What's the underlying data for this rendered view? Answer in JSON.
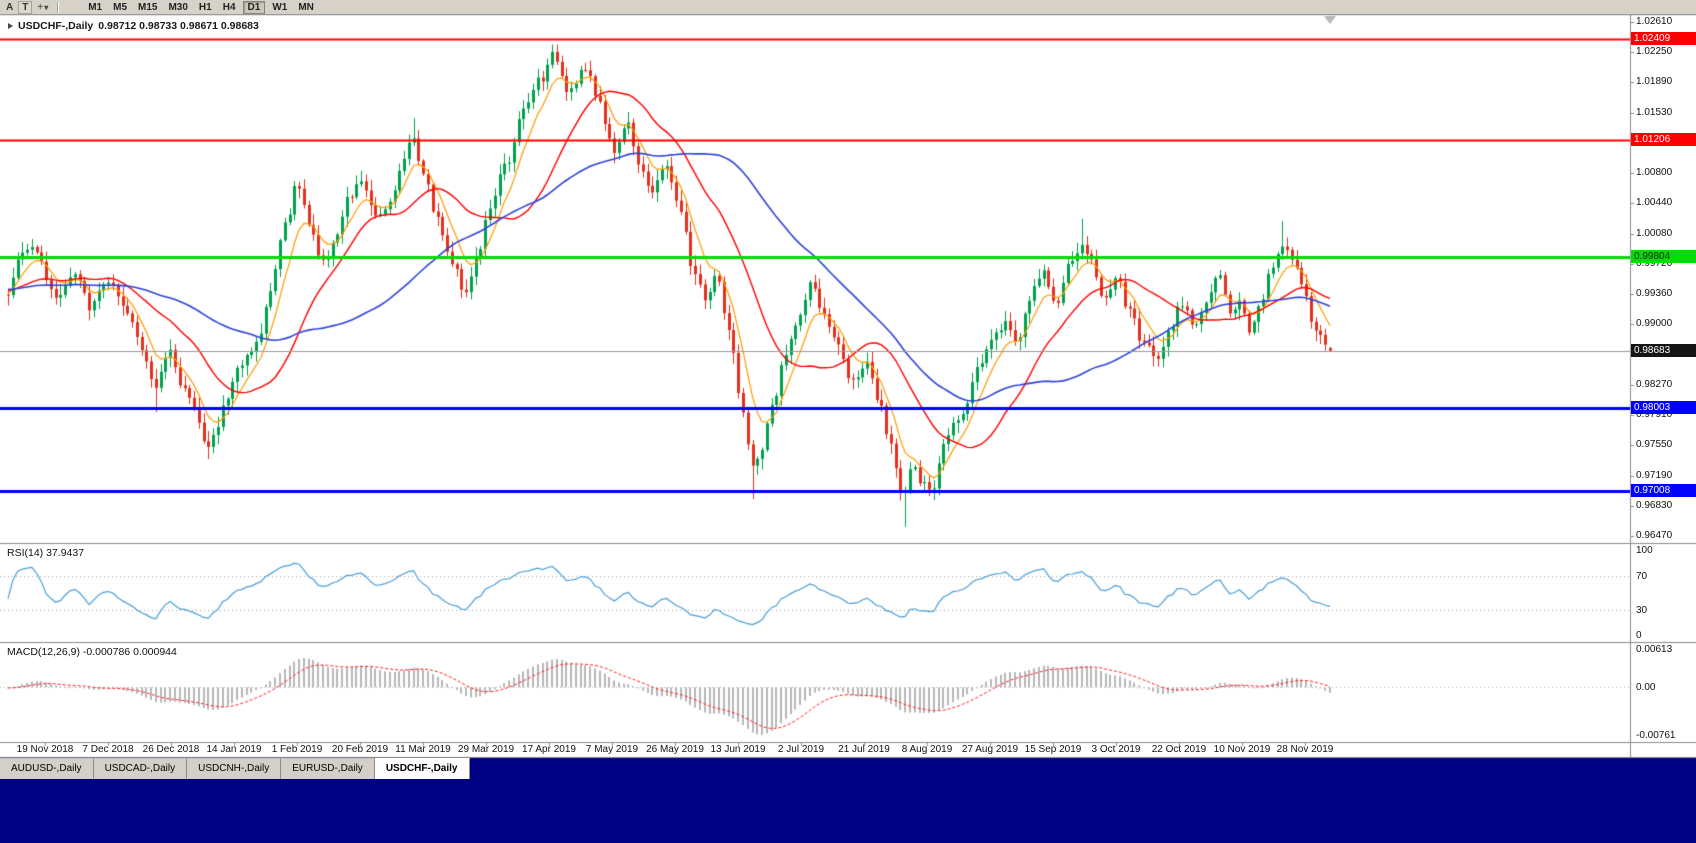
{
  "toolbar": {
    "buttons": [
      {
        "label": "A"
      },
      {
        "label": "T"
      }
    ],
    "timeframes": [
      "M1",
      "M5",
      "M15",
      "M30",
      "H1",
      "H4",
      "D1",
      "W1",
      "MN"
    ],
    "active_timeframe": "D1"
  },
  "chart": {
    "symbol_title": "USDCHF-,Daily",
    "ohlc_text": "0.98712 0.98733 0.98671 0.98683"
  },
  "chart_data": {
    "type": "candlestick",
    "symbol": "USDCHF",
    "period": "Daily",
    "ohlc": {
      "open": 0.98712,
      "high": 0.98733,
      "low": 0.98671,
      "close": 0.98683
    },
    "current_price_label": "0.98683",
    "price_axis": {
      "top": 1.0261,
      "bottom": 0.9647,
      "ticks": [
        "1.02610",
        "1.02250",
        "1.01890",
        "1.01530",
        "1.01170",
        "1.00800",
        "1.00440",
        "1.00080",
        "0.99720",
        "0.99360",
        "0.99000",
        "0.98640",
        "0.98270",
        "0.97910",
        "0.97550",
        "0.97190",
        "0.96830",
        "0.96470"
      ]
    },
    "x_labels": [
      "19 Nov 2018",
      "7 Dec 2018",
      "26 Dec 2018",
      "14 Jan 2019",
      "1 Feb 2019",
      "20 Feb 2019",
      "11 Mar 2019",
      "29 Mar 2019",
      "17 Apr 2019",
      "7 May 2019",
      "26 May 2019",
      "13 Jun 2019",
      "2 Jul 2019",
      "21 Jul 2019",
      "8 Aug 2019",
      "27 Aug 2019",
      "15 Sep 2019",
      "3 Oct 2019",
      "22 Oct 2019",
      "10 Nov 2019",
      "28 Nov 2019"
    ],
    "horizontal_lines": [
      {
        "price": 1.02409,
        "label": "1.02409",
        "color": "#ff0000",
        "thickness": 2,
        "label_text_color": "#ffffff"
      },
      {
        "price": 1.01206,
        "label": "1.01206",
        "color": "#ff0000",
        "thickness": 2,
        "label_text_color": "#ffffff"
      },
      {
        "price": 0.99804,
        "label": "0.99804",
        "color": "#00dd00",
        "thickness": 3,
        "label_text_color": "#003300"
      },
      {
        "price": 0.98003,
        "label": "0.98003",
        "color": "#0000ff",
        "thickness": 3,
        "label_text_color": "#ffffff"
      },
      {
        "price": 0.97008,
        "label": "0.97008",
        "color": "#0000ff",
        "thickness": 3,
        "label_text_color": "#ffffff"
      }
    ],
    "candles": {
      "count": 278,
      "path": [
        [
          0.0,
          0.9945
        ],
        [
          0.01,
          0.9985
        ],
        [
          0.022,
          0.9992
        ],
        [
          0.035,
          0.9935
        ],
        [
          0.05,
          0.9958
        ],
        [
          0.062,
          0.9918
        ],
        [
          0.075,
          0.9952
        ],
        [
          0.09,
          0.9905
        ],
        [
          0.103,
          0.9868
        ],
        [
          0.112,
          0.9825
        ],
        [
          0.122,
          0.9868
        ],
        [
          0.132,
          0.983
        ],
        [
          0.142,
          0.979
        ],
        [
          0.152,
          0.9758
        ],
        [
          0.158,
          0.9775
        ],
        [
          0.165,
          0.981
        ],
        [
          0.175,
          0.985
        ],
        [
          0.188,
          0.9878
        ],
        [
          0.198,
          0.9945
        ],
        [
          0.21,
          1.002
        ],
        [
          0.218,
          1.0068
        ],
        [
          0.228,
          1.002
        ],
        [
          0.238,
          0.9972
        ],
        [
          0.248,
          1.001
        ],
        [
          0.258,
          1.0048
        ],
        [
          0.268,
          1.007
        ],
        [
          0.278,
          1.0022
        ],
        [
          0.288,
          1.0048
        ],
        [
          0.298,
          1.0095
        ],
        [
          0.306,
          1.0122
        ],
        [
          0.315,
          1.008
        ],
        [
          0.325,
          1.0028
        ],
        [
          0.335,
          0.9975
        ],
        [
          0.345,
          0.9942
        ],
        [
          0.355,
          0.9985
        ],
        [
          0.365,
          1.004
        ],
        [
          0.378,
          1.0098
        ],
        [
          0.39,
          1.0152
        ],
        [
          0.402,
          1.0192
        ],
        [
          0.413,
          1.0218
        ],
        [
          0.424,
          1.0185
        ],
        [
          0.435,
          1.0208
        ],
        [
          0.447,
          1.0165
        ],
        [
          0.458,
          1.0108
        ],
        [
          0.468,
          1.0142
        ],
        [
          0.478,
          1.0095
        ],
        [
          0.488,
          1.0058
        ],
        [
          0.498,
          1.0092
        ],
        [
          0.508,
          1.0035
        ],
        [
          0.518,
          0.9965
        ],
        [
          0.528,
          0.993
        ],
        [
          0.535,
          0.9958
        ],
        [
          0.545,
          0.9895
        ],
        [
          0.555,
          0.979
        ],
        [
          0.563,
          0.9722
        ],
        [
          0.57,
          0.9752
        ],
        [
          0.578,
          0.9802
        ],
        [
          0.588,
          0.9858
        ],
        [
          0.598,
          0.991
        ],
        [
          0.608,
          0.9945
        ],
        [
          0.618,
          0.9905
        ],
        [
          0.628,
          0.9872
        ],
        [
          0.638,
          0.9828
        ],
        [
          0.648,
          0.9858
        ],
        [
          0.658,
          0.9802
        ],
        [
          0.668,
          0.9748
        ],
        [
          0.676,
          0.97
        ],
        [
          0.684,
          0.9735
        ],
        [
          0.692,
          0.9705
        ],
        [
          0.7,
          0.9698
        ],
        [
          0.708,
          0.9758
        ],
        [
          0.716,
          0.9792
        ],
        [
          0.724,
          0.9808
        ],
        [
          0.734,
          0.9852
        ],
        [
          0.744,
          0.9888
        ],
        [
          0.754,
          0.9902
        ],
        [
          0.762,
          0.9878
        ],
        [
          0.772,
          0.9928
        ],
        [
          0.782,
          0.9958
        ],
        [
          0.792,
          0.9925
        ],
        [
          0.802,
          0.9968
        ],
        [
          0.812,
          0.9995
        ],
        [
          0.82,
          0.9972
        ],
        [
          0.828,
          0.993
        ],
        [
          0.838,
          0.9958
        ],
        [
          0.848,
          0.9912
        ],
        [
          0.858,
          0.9878
        ],
        [
          0.868,
          0.986
        ],
        [
          0.878,
          0.9898
        ],
        [
          0.888,
          0.9928
        ],
        [
          0.898,
          0.9905
        ],
        [
          0.908,
          0.9932
        ],
        [
          0.916,
          0.9952
        ],
        [
          0.924,
          0.9908
        ],
        [
          0.932,
          0.9928
        ],
        [
          0.94,
          0.9895
        ],
        [
          0.948,
          0.9928
        ],
        [
          0.956,
          0.9968
        ],
        [
          0.964,
          1.0002
        ],
        [
          0.972,
          0.9988
        ],
        [
          0.98,
          0.9938
        ],
        [
          0.99,
          0.9888
        ],
        [
          1.0,
          0.98683
        ]
      ],
      "spikes": [
        {
          "f": 0.112,
          "low": 0.9795
        },
        {
          "f": 0.152,
          "low": 0.9739
        },
        {
          "f": 0.306,
          "high": 1.0146
        },
        {
          "f": 0.413,
          "high": 1.0234
        },
        {
          "f": 0.563,
          "low": 0.9691
        },
        {
          "f": 0.678,
          "low": 0.9658
        },
        {
          "f": 0.7,
          "low": 0.969
        },
        {
          "f": 0.812,
          "high": 1.0026
        },
        {
          "f": 0.964,
          "high": 1.0023
        }
      ]
    },
    "moving_averages": [
      {
        "period": 7,
        "method": "ema",
        "color": "#ff9c00",
        "width": 1.2
      },
      {
        "period": 21,
        "method": "sma",
        "color": "#ff0000",
        "width": 1.4
      },
      {
        "period": 50,
        "method": "sma",
        "color": "#2e44d8",
        "width": 1.6
      }
    ],
    "rsi": {
      "title": "RSI(14) 37.9437",
      "period": 14,
      "value": 37.9437,
      "levels": [
        {
          "text": "100",
          "value": 100
        },
        {
          "text": "70",
          "value": 70
        },
        {
          "text": "30",
          "value": 30
        },
        {
          "text": "0",
          "value": 0
        }
      ],
      "line_color": "#4c9fd8"
    },
    "macd": {
      "title": "MACD(12,26,9) -0.000786 0.000944",
      "fast": 12,
      "slow": 26,
      "signal": 9,
      "value_main": -0.000786,
      "value_signal": 0.000944,
      "axis_max": 0.00613,
      "axis_min": -0.00761,
      "axis_labels": [
        {
          "text": "0.00613",
          "value": 0.00613
        },
        {
          "text": "0.00",
          "value": 0
        },
        {
          "text": "-0.00761",
          "value": -0.00761
        }
      ],
      "histogram_color": "#b8b8b8",
      "signal_color": "#ff2020"
    }
  },
  "tabs": [
    {
      "label": "AUDUSD-,Daily",
      "active": false
    },
    {
      "label": "USDCAD-,Daily",
      "active": false
    },
    {
      "label": "USDCNH-,Daily",
      "active": false
    },
    {
      "label": "EURUSD-,Daily",
      "active": false
    },
    {
      "label": "USDCHF-,Daily",
      "active": true
    }
  ],
  "colors": {
    "bull": "#00a14e",
    "bear": "#e3301d",
    "background": "#ffffff",
    "panel_border": "#8c8c8c",
    "grid_dotted": "#a8a8a8",
    "current_price_bg": "#151515",
    "current_price_line": "#9a9a9a",
    "toolbar_bg": "#d6d2c8",
    "tab_bg": "#d4d0c8",
    "workspace_bg": "#000082"
  }
}
